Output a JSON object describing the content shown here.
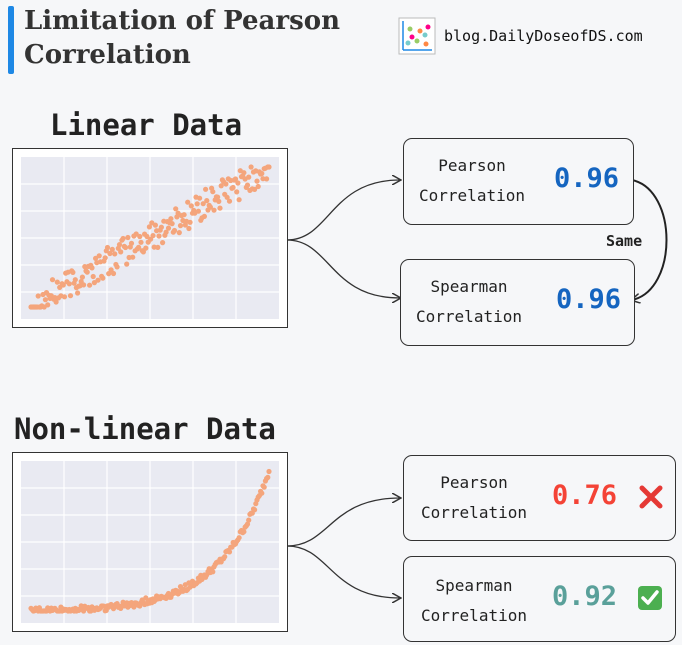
{
  "header": {
    "title": "Limitation of Pearson Correlation",
    "brand": "blog.DailyDoseofDS.com",
    "logo_icon": "scatter-plot-logo-icon",
    "accent_color": "#1e88e5"
  },
  "linear": {
    "title": "Linear Data",
    "pearson": {
      "label_line1": "Pearson",
      "label_line2": "Correlation",
      "value": "0.96",
      "color": "#1565c0"
    },
    "spearman": {
      "label_line1": "Spearman",
      "label_line2": "Correlation",
      "value": "0.96",
      "color": "#1565c0"
    },
    "same_label": "Same"
  },
  "nonlinear": {
    "title": "Non-linear Data",
    "pearson": {
      "label_line1": "Pearson",
      "label_line2": "Correlation",
      "value": "0.76",
      "color": "#f44336",
      "mark": "✕",
      "mark_icon": "cross-mark-icon"
    },
    "spearman": {
      "label_line1": "Spearman",
      "label_line2": "Correlation",
      "value": "0.92",
      "color": "#5aa09a",
      "mark": "✓",
      "mark_icon": "check-mark-icon"
    }
  },
  "chart_data": [
    {
      "type": "scatter",
      "series": [
        {
          "shape": "linear",
          "color": "#f4a57c"
        }
      ],
      "grid": true
    },
    {
      "type": "scatter",
      "series": [
        {
          "shape": "exponential",
          "color": "#f4a57c"
        }
      ],
      "grid": true
    }
  ]
}
